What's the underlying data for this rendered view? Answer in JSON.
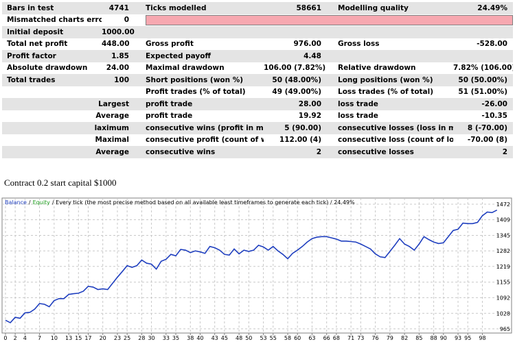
{
  "table": {
    "rows": [
      [
        "Bars in test",
        "4741",
        "Ticks modelled",
        "58661",
        "Modelling quality",
        "24.49%"
      ],
      [
        "Mismatched charts errors",
        "0"
      ],
      [
        "Initial deposit",
        "1000.00"
      ],
      [
        "Total net profit",
        "448.00",
        "Gross profit",
        "976.00",
        "Gross loss",
        "-528.00"
      ],
      [
        "Profit factor",
        "1.85",
        "Expected payoff",
        "4.48"
      ],
      [
        "Absolute drawdown",
        "24.00",
        "Maximal drawdown",
        "106.00 (7.82%)",
        "Relative drawdown",
        "7.82% (106.00)"
      ],
      [
        "Total trades",
        "100",
        "Short positions (won %)",
        "50 (48.00%)",
        "Long positions (won %)",
        "50 (50.00%)"
      ],
      [
        "Profit trades (% of total)",
        "49 (49.00%)",
        "Loss trades (% of total)",
        "51 (51.00%)"
      ],
      [
        "Largest",
        "profit trade",
        "28.00",
        "loss trade",
        "-26.00"
      ],
      [
        "Average",
        "profit trade",
        "19.92",
        "loss trade",
        "-10.35"
      ],
      [
        "laximum",
        "consecutive wins (profit in money)",
        "5 (90.00)",
        "consecutive losses (loss in money)",
        "8 (-70.00)"
      ],
      [
        "Maximal",
        "consecutive profit (count of wins)",
        "112.00 (4)",
        "consecutive loss (count of losses)",
        "-70.00 (8)"
      ],
      [
        "Average",
        "consecutive wins",
        "2",
        "consecutive losses",
        "2"
      ]
    ]
  },
  "caption": "Contract 0.2 start capital $1000",
  "chart_data": {
    "type": "line",
    "separator": "/",
    "subtitle": "/ Every tick (the most precise method based on all available least timeframes to generate each tick) / 24.49%",
    "x": [
      0,
      1,
      2,
      3,
      4,
      5,
      6,
      7,
      8,
      9,
      10,
      11,
      12,
      13,
      14,
      15,
      16,
      17,
      18,
      19,
      20,
      21,
      22,
      23,
      24,
      25,
      26,
      27,
      28,
      29,
      30,
      31,
      32,
      33,
      34,
      35,
      36,
      37,
      38,
      39,
      40,
      41,
      42,
      43,
      44,
      45,
      46,
      47,
      48,
      49,
      50,
      51,
      52,
      53,
      54,
      55,
      56,
      57,
      58,
      59,
      60,
      61,
      62,
      63,
      64,
      65,
      66,
      67,
      68,
      69,
      70,
      71,
      72,
      73,
      74,
      75,
      76,
      77,
      78,
      79,
      80,
      81,
      82,
      83,
      84,
      85,
      86,
      87,
      88,
      89,
      90,
      91,
      92,
      93,
      94,
      95,
      96,
      97,
      98,
      99,
      100,
      101
    ],
    "series": [
      {
        "name": "Balance",
        "color": "#1f3fbf",
        "values": [
          1000,
          990,
          1012,
          1008,
          1030,
          1032,
          1045,
          1068,
          1065,
          1055,
          1080,
          1088,
          1088,
          1105,
          1108,
          1110,
          1118,
          1138,
          1135,
          1125,
          1128,
          1125,
          1150,
          1175,
          1198,
          1222,
          1215,
          1222,
          1245,
          1232,
          1228,
          1208,
          1240,
          1248,
          1268,
          1262,
          1288,
          1285,
          1275,
          1282,
          1278,
          1272,
          1300,
          1295,
          1285,
          1268,
          1265,
          1290,
          1270,
          1285,
          1280,
          1285,
          1305,
          1298,
          1285,
          1300,
          1282,
          1268,
          1250,
          1272,
          1285,
          1300,
          1318,
          1332,
          1338,
          1340,
          1340,
          1335,
          1330,
          1322,
          1322,
          1320,
          1318,
          1310,
          1300,
          1290,
          1270,
          1258,
          1255,
          1280,
          1305,
          1332,
          1310,
          1300,
          1285,
          1310,
          1340,
          1328,
          1318,
          1312,
          1315,
          1340,
          1365,
          1370,
          1395,
          1393,
          1393,
          1398,
          1425,
          1440,
          1438,
          1448
        ]
      },
      {
        "name": "Equity",
        "color": "#1f9f1f"
      }
    ],
    "xlim": [
      -0.7,
      104
    ],
    "xticks": [
      0,
      2,
      4,
      7,
      10,
      13,
      15,
      17,
      20,
      23,
      25,
      28,
      30,
      33,
      35,
      38,
      40,
      43,
      45,
      48,
      50,
      53,
      55,
      58,
      60,
      63,
      66,
      68,
      71,
      73,
      76,
      79,
      82,
      85,
      88,
      90,
      93,
      95,
      98
    ],
    "ylim": [
      948,
      1497
    ],
    "yticks": [
      965,
      1028,
      1092,
      1155,
      1219,
      1282,
      1345,
      1409,
      1472
    ],
    "grid": true
  }
}
